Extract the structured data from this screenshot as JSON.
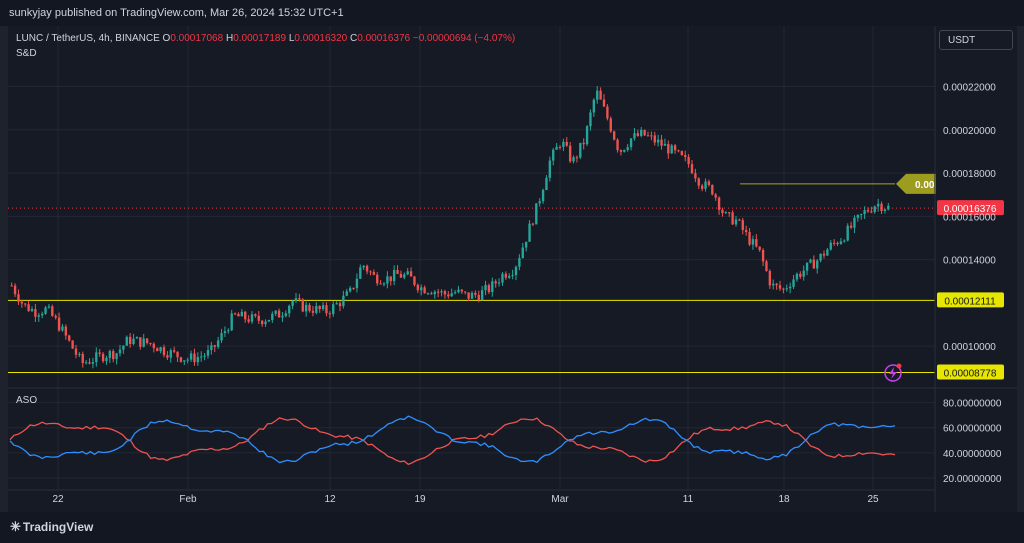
{
  "header": {
    "publisher": "sunkyjay published on TradingView.com, Mar 26, 2024 15:32 UTC+1"
  },
  "legend": {
    "symbol": "LUNC / TetherUS, 4h, BINANCE",
    "o_label": "O",
    "o_value": "0.00017068",
    "h_label": "H",
    "h_value": "0.00017189",
    "l_label": "L",
    "l_value": "0.00016320",
    "c_label": "C",
    "c_value": "0.00016376",
    "change": "−0.00000694 (−4.07%)",
    "study": "S&D"
  },
  "currency": "USDT",
  "oscillator_label": "ASO",
  "footer": {
    "brand": "TradingView",
    "brand_icon": "tradingview-logo-icon"
  },
  "colors": {
    "up": "#26a69a",
    "down": "#ef5350",
    "level": "#e6e600",
    "price_badge": "#f23645",
    "bull_line": "#ef5350",
    "bear_line": "#2f8fff",
    "bolt": "#c940f0"
  },
  "chart_data": {
    "type": "candlestick",
    "timeframe": "4h",
    "x_tick_labels": [
      "22",
      "Feb",
      "12",
      "19",
      "Mar",
      "11",
      "18",
      "25"
    ],
    "price_ticks": [
      "0.00022000",
      "0.00020000",
      "0.00018000",
      "0.00016000",
      "0.00014000",
      "0.00010000"
    ],
    "price_axis_range": [
      8.2e-05,
      0.000248
    ],
    "last_price": "0.00016376",
    "levels": [
      {
        "value": 0.00012111,
        "label": "0.00012111"
      },
      {
        "value": 8.778e-05,
        "label": "0.00008778"
      }
    ],
    "target_line": {
      "value": 0.000175,
      "label": "0.00"
    },
    "oscillator": {
      "name": "ASO",
      "ticks": [
        "80.00000000",
        "60.00000000",
        "40.00000000",
        "20.00000000"
      ],
      "range": [
        12,
        90
      ],
      "approx_levels": {
        "bull_start": 45,
        "bull_end": 35,
        "bear_start": 52,
        "bear_end": 63
      }
    },
    "price_path": [
      [
        0.000128,
        0.000119
      ],
      [
        0.000116,
        0.000117
      ],
      [
        0.00011,
        0.000101
      ],
      [
        9.2e-05,
        9.4e-05
      ],
      [
        9.6e-05,
        9.7e-05
      ],
      [
        0.000103,
        0.000102
      ],
      [
        0.000101,
        9.8e-05
      ],
      [
        9.6e-05,
        9.4e-05
      ],
      [
        9.5e-05,
        9.7e-05
      ],
      [
        0.000105,
        0.000114
      ],
      [
        0.000113,
        0.000112
      ],
      [
        0.000113,
        0.000115
      ],
      [
        0.000121,
        0.000118
      ],
      [
        0.000117,
        0.000116
      ],
      [
        0.00012,
        0.000125
      ],
      [
        0.000138,
        0.000132
      ],
      [
        0.000131,
        0.000133
      ],
      [
        0.000132,
        0.000127
      ],
      [
        0.000126,
        0.000124
      ],
      [
        0.000125,
        0.000123
      ],
      [
        0.000124,
        0.000127
      ],
      [
        0.000133,
        0.000136
      ],
      [
        0.00015,
        0.000165
      ],
      [
        0.000185,
        0.000195
      ],
      [
        0.000185,
        0.000195
      ],
      [
        0.000218,
        0.000205
      ],
      [
        0.00019,
        0.000196
      ],
      [
        0.000198,
        0.000195
      ],
      [
        0.000192,
        0.000188
      ],
      [
        0.000184,
        0.000175
      ],
      [
        0.000172,
        0.00016
      ],
      [
        0.000158,
        0.00015
      ],
      [
        0.000143,
        0.000128
      ],
      [
        0.000126,
        0.000132
      ],
      [
        0.000136,
        0.00014
      ],
      [
        0.000146,
        0.00015
      ],
      [
        0.000156,
        0.000162
      ],
      [
        0.000166,
        0.000164
      ]
    ]
  }
}
